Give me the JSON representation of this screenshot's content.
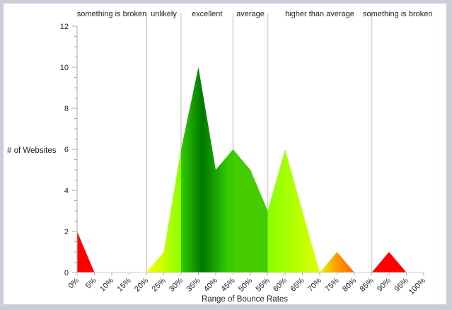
{
  "chart_data": {
    "type": "area",
    "xlabel": "Range of Bounce Rates",
    "ylabel": "# of Websites",
    "ylim": [
      0,
      12
    ],
    "yticks": [
      0,
      2,
      4,
      6,
      8,
      10,
      12
    ],
    "categories": [
      "0%",
      "5%",
      "10%",
      "15%",
      "20%",
      "25%",
      "30%",
      "35%",
      "40%",
      "45%",
      "50%",
      "55%",
      "60%",
      "65%",
      "70%",
      "75%",
      "80%",
      "85%",
      "90%",
      "95%",
      "100%"
    ],
    "values": [
      2,
      0,
      0,
      0,
      0,
      1,
      6,
      10,
      5,
      6,
      5,
      3,
      6,
      3,
      0,
      1,
      0,
      0,
      1,
      0,
      0
    ],
    "zones": [
      {
        "label": "something is broken",
        "from": "0%",
        "to": "20%"
      },
      {
        "label": "unlikely",
        "from": "20%",
        "to": "30%"
      },
      {
        "label": "excellent",
        "from": "30%",
        "to": "45%"
      },
      {
        "label": "average",
        "from": "45%",
        "to": "55%"
      },
      {
        "label": "higher than average",
        "from": "55%",
        "to": "85%"
      },
      {
        "label": "something is broken",
        "from": "85%",
        "to": "100%"
      }
    ],
    "zone_boundaries": [
      "20%",
      "30%",
      "45%",
      "55%",
      "85%"
    ]
  },
  "colors": {
    "broken": "#ff0000",
    "unlikely": "#ffff00",
    "excellent_edge": "#33cc00",
    "excellent_center": "#007700",
    "average": "#44cc00",
    "higher_start": "#88ff00",
    "higher_end": "#ddff00",
    "orange": "#ff9900",
    "divider": "#d4d4d4",
    "axis": "#aaaaaa"
  }
}
